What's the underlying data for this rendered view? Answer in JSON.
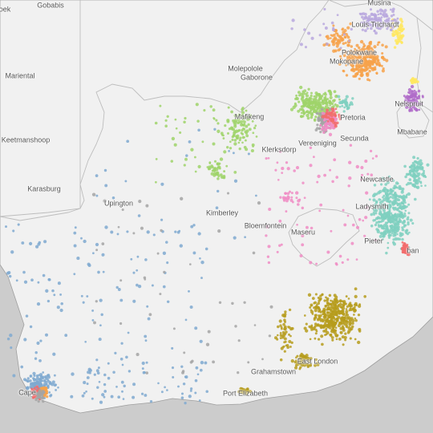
{
  "colors": {
    "sea": "#cccccc",
    "land": "#f1f1f1",
    "border": "#bdbdbd",
    "coast": "#9e9e9e"
  },
  "dot_groups": [
    {
      "name": "orange",
      "color": "#f7a24a"
    },
    {
      "name": "yellow",
      "color": "#ffe760"
    },
    {
      "name": "lavender",
      "color": "#b9a8de"
    },
    {
      "name": "purple",
      "color": "#b06cc9"
    },
    {
      "name": "green",
      "color": "#9fd36a"
    },
    {
      "name": "teal",
      "color": "#7fd0c0"
    },
    {
      "name": "olive",
      "color": "#b69c1c"
    },
    {
      "name": "pink",
      "color": "#f08cc4"
    },
    {
      "name": "blue",
      "color": "#7fa9d0"
    },
    {
      "name": "red",
      "color": "#f26c6c"
    },
    {
      "name": "gray",
      "color": "#a4a4a4"
    }
  ],
  "places": [
    {
      "id": "gobabis",
      "label": "Gobabis"
    },
    {
      "id": "windhoek",
      "label": "oek"
    },
    {
      "id": "mariental",
      "label": "Mariental"
    },
    {
      "id": "keetmanshoop",
      "label": "Keetmanshoop"
    },
    {
      "id": "karasburg",
      "label": "Karasburg"
    },
    {
      "id": "musina",
      "label": "Musina"
    },
    {
      "id": "louis-trichardt",
      "label": "Louis Trichardt"
    },
    {
      "id": "polokwane",
      "label": "Polokwane"
    },
    {
      "id": "mokopane",
      "label": "Mokopane"
    },
    {
      "id": "molepolole",
      "label": "Molepolole"
    },
    {
      "id": "gaborone",
      "label": "Gaborone"
    },
    {
      "id": "mafikeng",
      "label": "Mafikeng"
    },
    {
      "id": "pretoria",
      "label": "Pretoria"
    },
    {
      "id": "nelspruit",
      "label": "Nelspruit"
    },
    {
      "id": "mbabane",
      "label": "Mbabane"
    },
    {
      "id": "klerksdorp",
      "label": "Klerksdorp"
    },
    {
      "id": "vereeniging",
      "label": "Vereeniging"
    },
    {
      "id": "secunda",
      "label": "Secunda"
    },
    {
      "id": "newcastle",
      "label": "Newcastle"
    },
    {
      "id": "ladysmith",
      "label": "Ladysmith"
    },
    {
      "id": "upington",
      "label": "Upington"
    },
    {
      "id": "kimberley",
      "label": "Kimberley"
    },
    {
      "id": "bloemfontein",
      "label": "Bloemfontein"
    },
    {
      "id": "maseru",
      "label": "Maseru"
    },
    {
      "id": "pietermaritzburg",
      "label": "Pieter"
    },
    {
      "id": "durban",
      "label": "ban"
    },
    {
      "id": "east-london",
      "label": "East London"
    },
    {
      "id": "grahamstown",
      "label": "Grahamstown"
    },
    {
      "id": "port-elizabeth",
      "label": "Port Elizabeth"
    },
    {
      "id": "cape-town",
      "label": "Cape"
    }
  ]
}
